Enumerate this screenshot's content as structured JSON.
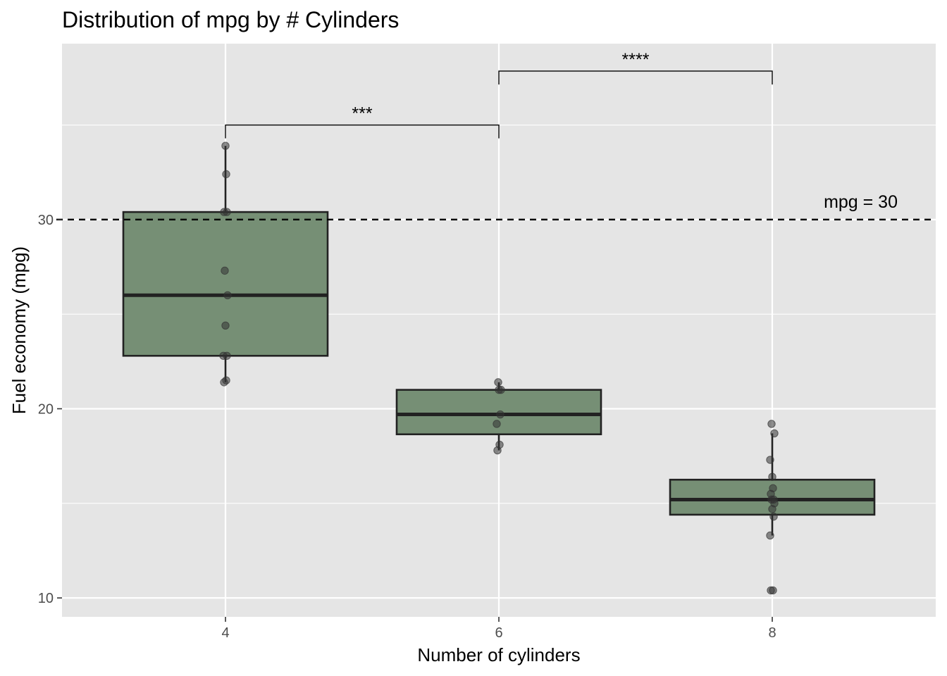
{
  "chart_data": {
    "type": "box",
    "title": "Distribution of mpg by # Cylinders",
    "xlabel": "Number of cylinders",
    "ylabel": "Fuel economy (mpg)",
    "categories": [
      "4",
      "6",
      "8"
    ],
    "x_ticks": [
      "4",
      "6",
      "8"
    ],
    "y_ticks": [
      10,
      20,
      30
    ],
    "ylim": [
      9.0,
      39.3
    ],
    "grid": true,
    "colors": {
      "panel": "#e5e5e5",
      "grid": "#ffffff",
      "box_fill": "#768f75",
      "box_stroke": "#222222",
      "point": "#333333"
    },
    "boxes": [
      {
        "category": "4",
        "lower_whisker": 21.4,
        "q1": 22.8,
        "median": 26.0,
        "q3": 30.4,
        "upper_whisker": 33.9,
        "points": [
          21.4,
          21.5,
          22.8,
          22.8,
          24.4,
          26.0,
          27.3,
          30.4,
          30.4,
          32.4,
          33.9
        ]
      },
      {
        "category": "6",
        "lower_whisker": 17.8,
        "q1": 18.65,
        "median": 19.7,
        "q3": 21.0,
        "upper_whisker": 21.4,
        "points": [
          17.8,
          18.1,
          19.2,
          19.7,
          21.0,
          21.0,
          21.4
        ]
      },
      {
        "category": "8",
        "lower_whisker": 13.3,
        "q1": 14.4,
        "median": 15.2,
        "q3": 16.25,
        "upper_whisker": 18.7,
        "outliers": [
          10.4,
          10.4,
          19.2
        ],
        "points": [
          10.4,
          10.4,
          13.3,
          14.3,
          14.7,
          15.0,
          15.2,
          15.2,
          15.5,
          15.8,
          16.4,
          17.3,
          18.7,
          19.2
        ]
      }
    ],
    "reference_line": {
      "y": 30,
      "label": "mpg = 30",
      "style": "dashed"
    },
    "significance": [
      {
        "from": "4",
        "to": "6",
        "label": "***",
        "y": 35.0
      },
      {
        "from": "6",
        "to": "8",
        "label": "****",
        "y": 37.85
      }
    ]
  }
}
